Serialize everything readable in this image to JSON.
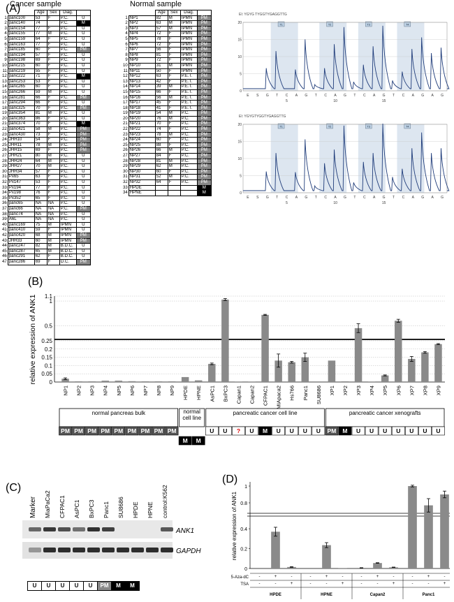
{
  "panel_labels": {
    "a": "(A)",
    "b": "(B)",
    "c": "(C)",
    "d": "(D)"
  },
  "cancer_table": {
    "title": "Cancer sample",
    "headers": [
      "Age",
      "Sex",
      "Diag."
    ],
    "rows": [
      [
        "1",
        "panc100",
        "53",
        "F",
        "P.C.",
        "U"
      ],
      [
        "2",
        "panc140",
        "74",
        "",
        "P.C.",
        "M"
      ],
      [
        "3",
        "panc154",
        "77",
        "F",
        "P.C.",
        "U"
      ],
      [
        "4",
        "panc155",
        "77",
        "M",
        "P.C.",
        "U"
      ],
      [
        "5",
        "panc159",
        "64",
        "F",
        "P.C.",
        "U"
      ],
      [
        "6",
        "panc163",
        "77",
        "F",
        "P.C.",
        "U"
      ],
      [
        "7",
        "panc185",
        "60",
        "F",
        "P.C.",
        "PM"
      ],
      [
        "8",
        "panc194",
        "57",
        "F",
        "P.C.",
        "U"
      ],
      [
        "9",
        "panc198",
        "69",
        "F",
        "P.C.",
        "U"
      ],
      [
        "10",
        "panc215",
        "60",
        "F",
        "P.C.",
        "U"
      ],
      [
        "11",
        "panc219",
        "55",
        "F",
        "P.C.",
        "U"
      ],
      [
        "12",
        "panc222",
        "71",
        "F",
        "P.C.",
        "M"
      ],
      [
        "13",
        "panc253",
        "53",
        "F",
        "P.C.",
        "U"
      ],
      [
        "14",
        "panc265",
        "60",
        "F",
        "P.C.",
        "U"
      ],
      [
        "15",
        "panc266",
        "59",
        "M",
        "P.C.",
        "U"
      ],
      [
        "16",
        "panc281",
        "66",
        "F",
        "P.C.",
        "PM"
      ],
      [
        "17",
        "panc294",
        "66",
        "F",
        "P.C.",
        "U"
      ],
      [
        "18",
        "panc325",
        "70",
        "F",
        "P.C.",
        "PM"
      ],
      [
        "19",
        "panc354",
        "81",
        "M",
        "P.C.",
        "U"
      ],
      [
        "20",
        "panc363",
        "86",
        "F",
        "P.C.",
        "U"
      ],
      [
        "21",
        "panc374",
        "70",
        "F",
        "P.C.",
        "M"
      ],
      [
        "22",
        "panc421",
        "58",
        "M",
        "P.C.",
        "PM"
      ],
      [
        "23",
        "panc430",
        "73",
        "F",
        "P.C.",
        "PM"
      ],
      [
        "24",
        "JHH10",
        "54",
        "F",
        "P.C.",
        "PM"
      ],
      [
        "25",
        "JHH11",
        "78",
        "M",
        "P.C.",
        "PM"
      ],
      [
        "26",
        "JHH15",
        "69",
        "F",
        "P.C.",
        "PM"
      ],
      [
        "27",
        "JHH21",
        "80",
        "M",
        "P.C.",
        "U"
      ],
      [
        "28",
        "JHH24",
        "64",
        "M",
        "P.C.",
        "U"
      ],
      [
        "29",
        "JHH27",
        "70",
        "M",
        "P.C.",
        "U"
      ],
      [
        "30",
        "JHH34",
        "57",
        "F",
        "P.C.",
        "U"
      ],
      [
        "31",
        "Px65",
        "63",
        "F",
        "P.C.",
        "U"
      ],
      [
        "32",
        "Px147",
        "53",
        "F",
        "P.C.",
        "U"
      ],
      [
        "33",
        "Px194",
        "77",
        "F",
        "P.C.",
        "U"
      ],
      [
        "34",
        "Px198",
        "76",
        "F",
        "P.C.",
        "U"
      ],
      [
        "35",
        "Px352",
        "65",
        "F",
        "P.C.",
        "U"
      ],
      [
        "36",
        "panc65",
        "NA",
        "NA",
        "P.C.",
        "U"
      ],
      [
        "37",
        "panc66",
        "NA",
        "NA",
        "P.C.",
        "PM"
      ],
      [
        "38",
        "panc74",
        "NA",
        "NA",
        "P.C.",
        "U"
      ],
      [
        "39",
        "A6L",
        "NA",
        "NA",
        "P.C.",
        "U"
      ],
      [
        "40",
        "panc169",
        "75",
        "M",
        "IPMN",
        "U"
      ],
      [
        "41",
        "panc410",
        "59",
        "F",
        "IPMN",
        "U"
      ],
      [
        "42",
        "panc420",
        "68",
        "M",
        "IPMN",
        "PM"
      ],
      [
        "43",
        "JHH33",
        "60",
        "M",
        "IPMN",
        "PM"
      ],
      [
        "44",
        "panc247",
        "82",
        "M",
        "B.D.C.",
        "U"
      ],
      [
        "45",
        "panc287",
        "65",
        "M",
        "B.D.C.",
        "U"
      ],
      [
        "46",
        "panc291",
        "62",
        "F",
        "B.D.C.",
        "U"
      ],
      [
        "47",
        "panc286",
        "69",
        "F",
        "D.C.",
        "PM"
      ]
    ]
  },
  "normal_table": {
    "title": "Normal sample",
    "headers": [
      "Age",
      "Sex",
      "Diag."
    ],
    "rows": [
      [
        "1",
        "NP1",
        "82",
        "M",
        "IPMN",
        "PM"
      ],
      [
        "2",
        "NP2",
        "63",
        "M",
        "IPMN",
        "PM"
      ],
      [
        "3",
        "NP3",
        "57",
        "M",
        "IPMN",
        "PM"
      ],
      [
        "4",
        "NP4",
        "72",
        "F",
        "IPMN",
        "PM"
      ],
      [
        "5",
        "NP5",
        "78",
        "F",
        "IPMN",
        "PM"
      ],
      [
        "6",
        "NP6",
        "72",
        "F",
        "IPMN",
        "PM"
      ],
      [
        "7",
        "NP7",
        "56",
        "F",
        "IPMN",
        "PM"
      ],
      [
        "8",
        "NP8",
        "81",
        "F",
        "IPMN",
        "PM"
      ],
      [
        "9",
        "NP9",
        "72",
        "F",
        "IPMN",
        "PM"
      ],
      [
        "10",
        "NP10",
        "31",
        "M",
        "IPMN",
        "PM"
      ],
      [
        "11",
        "NP11",
        "50",
        "F",
        "IPMN",
        "PM"
      ],
      [
        "12",
        "NP12",
        "63",
        "F",
        "P.E.T.",
        "PM"
      ],
      [
        "13",
        "NP13",
        "42",
        "F",
        "P.E.T.",
        "PM"
      ],
      [
        "14",
        "NP14",
        "39",
        "M",
        "P.E.T.",
        "PM"
      ],
      [
        "15",
        "NP15",
        "66",
        "F",
        "P.E.T.",
        "PM"
      ],
      [
        "16",
        "NP16",
        "56",
        "M",
        "P.E.T.",
        "PM"
      ],
      [
        "17",
        "NP17",
        "45",
        "F",
        "P.E.T.",
        "PM"
      ],
      [
        "18",
        "NP18",
        "41",
        "F",
        "P.E.T.",
        "PM"
      ],
      [
        "19",
        "NP19",
        "54",
        "M",
        "P.C.",
        "PM"
      ],
      [
        "20",
        "NP20",
        "76",
        "M",
        "P.C.",
        "PM"
      ],
      [
        "21",
        "NP21",
        "70",
        "F",
        "P.C.",
        "PM"
      ],
      [
        "22",
        "NP22",
        "74",
        "F",
        "P.C.",
        "PM"
      ],
      [
        "23",
        "NP23",
        "78",
        "M",
        "P.C.",
        "PM"
      ],
      [
        "24",
        "NP24",
        "60",
        "F",
        "P.C.",
        "PM"
      ],
      [
        "25",
        "NP25",
        "88",
        "F",
        "P.C.",
        "PM"
      ],
      [
        "26",
        "NP26",
        "66",
        "M",
        "P.C.",
        "PM"
      ],
      [
        "27",
        "NP27",
        "84",
        "F",
        "P.C.",
        "PM"
      ],
      [
        "28",
        "NP28",
        "81",
        "M",
        "P.C.",
        "PM"
      ],
      [
        "29",
        "NP29",
        "62",
        "M",
        "P.C.",
        "PM"
      ],
      [
        "30",
        "NP30",
        "60",
        "F",
        "P.C.",
        "PM"
      ],
      [
        "31",
        "NP31",
        "52",
        "M",
        "P.C.",
        "PM"
      ],
      [
        "32",
        "NP32",
        "64",
        "F",
        "P.C.",
        "PM"
      ],
      [
        "33",
        "HPDE",
        "",
        "",
        "",
        "M"
      ],
      [
        "34",
        "HPNE",
        "",
        "",
        "",
        "M"
      ]
    ]
  },
  "pyrogram": {
    "seq1": "EI: YGYG TYGGTYGAGGTTG",
    "seq2": "EI: YGYGTYGGTYGAGGTTG",
    "dispensation": [
      "E",
      "S",
      "G",
      "T",
      "C",
      "A",
      "G",
      "T",
      "C",
      "A",
      "G",
      "T",
      "C",
      "A",
      "G",
      "T",
      "C",
      "A",
      "G",
      "A",
      "G"
    ],
    "ticks": [
      "5",
      "10",
      "15"
    ],
    "cpg_labels": [
      "T1",
      "T2",
      "T3",
      "T4"
    ],
    "yticks": [
      "0",
      "5",
      "10",
      "15",
      "20"
    ]
  },
  "chart_b": {
    "type": "bar",
    "ylabel": "relative expression of ANK1",
    "yticks_low": [
      "0",
      "0.05",
      "0.1",
      "0.15",
      "0.2",
      "0.25"
    ],
    "yticks_high": [
      "0.5",
      "1",
      "1.1"
    ],
    "categories": [
      "NP1",
      "NP2",
      "NP3",
      "NP4",
      "NP5",
      "NP6",
      "NP7",
      "NP8",
      "NP9",
      "HPDE",
      "HPNE",
      "AsPC1",
      "BxPC3",
      "Capan1",
      "Capan2",
      "CFPAC1",
      "MIApaca2",
      "Hs766",
      "Panc1",
      "SU8686",
      "XP1",
      "XP2",
      "XP3",
      "XP4",
      "XP5",
      "XP6",
      "XP7",
      "XP8",
      "XP9"
    ],
    "values": [
      0.02,
      0.004,
      0.004,
      0.008,
      0.008,
      0.005,
      0.004,
      0.004,
      0.004,
      0.03,
      0.01,
      0.11,
      1.03,
      0.003,
      0.003,
      0.72,
      0.13,
      0.12,
      0.15,
      0.0,
      0.13,
      0.004,
      0.45,
      0.003,
      0.04,
      0.6,
      0.14,
      0.18,
      0.23
    ],
    "errors": [
      0.005,
      0,
      0,
      0,
      0,
      0,
      0,
      0,
      0,
      0,
      0,
      0.005,
      0.02,
      0,
      0,
      0.01,
      0.04,
      0.005,
      0.025,
      0,
      0,
      0,
      0.09,
      0,
      0.003,
      0.03,
      0.015,
      0.005,
      0.003
    ],
    "groups": [
      {
        "label": "normal pancreas bulk"
      },
      {
        "label": "normal\ncell line"
      },
      {
        "label": "pancreatic cancer cell line"
      },
      {
        "label": "pancreatic cancer xenografts"
      }
    ],
    "status": [
      "PM",
      "PM",
      "PM",
      "PM",
      "PM",
      "PM",
      "PM",
      "PM",
      "PM",
      "M",
      "M",
      "U",
      "U",
      "?",
      "U",
      "M",
      "U",
      "U",
      "U",
      "U",
      "PM",
      "M",
      "U",
      "U",
      "U",
      "U",
      "U",
      "U",
      "U"
    ]
  },
  "blot_c": {
    "lanes": [
      "Marker",
      "MiaPaCa2",
      "CFPAC1",
      "AsPC1",
      "BxPC3",
      "Panc1",
      "SU8686",
      "HPDE",
      "HPNE",
      "control:K562"
    ],
    "bands": [
      "ANK1",
      "GAPDH"
    ],
    "ank1_intensity": [
      0.6,
      0.9,
      0.75,
      0.55,
      0.95,
      0.85,
      0.0,
      0.0,
      0.0,
      0.7
    ],
    "status": [
      "U",
      "U",
      "U",
      "U",
      "U",
      "PM",
      "M",
      "M"
    ]
  },
  "chart_d": {
    "type": "bar",
    "ylabel": "relative expression of ANK1",
    "yticks_low": [
      "0",
      "0.2",
      "0.4"
    ],
    "yticks_high": [
      "0.8",
      "1"
    ],
    "treatments": {
      "aza_label": "5-Aza-dC",
      "tsa_label": "TSA"
    },
    "aza": [
      "-",
      "+",
      "-",
      "-",
      "+",
      "-",
      "-",
      "+",
      "-",
      "-",
      "+",
      "-"
    ],
    "tsa": [
      "-",
      "-",
      "+",
      "-",
      "-",
      "+",
      "-",
      "-",
      "+",
      "-",
      "-",
      "+"
    ],
    "groups": [
      "HPDE",
      "HPNE",
      "Capan2",
      "Panc1"
    ],
    "values": [
      0.0,
      0.37,
      0.015,
      0.0,
      0.235,
      0.002,
      0.006,
      0.055,
      0.012,
      1.0,
      0.77,
      0.9
    ],
    "errors": [
      0,
      0.045,
      0.003,
      0,
      0.025,
      0,
      0.002,
      0.003,
      0.002,
      0.01,
      0.08,
      0.04
    ]
  },
  "colors": {
    "bar": "#8a8a8a",
    "pm": "#888888",
    "m": "#000000",
    "trace": "#1f3c7a",
    "shade": "#dde6f0"
  }
}
